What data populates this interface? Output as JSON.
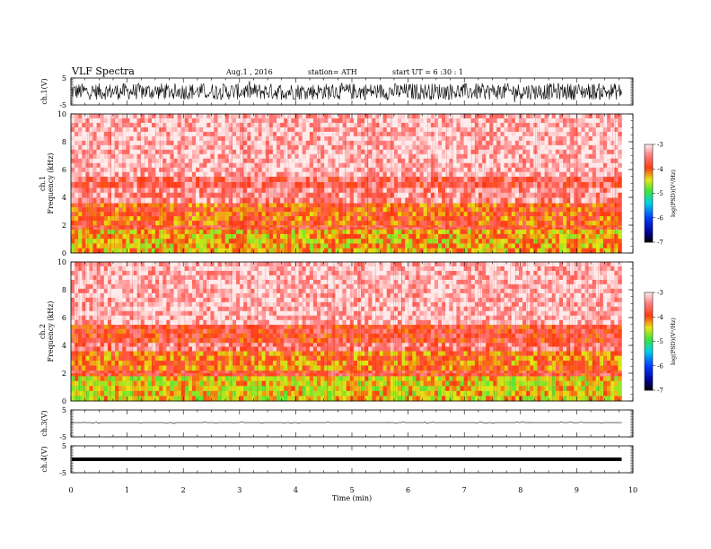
{
  "header": {
    "title": "VLF  Spectra",
    "date": "Aug.1  , 2016",
    "station": "station= ATH",
    "start": "start  UT  =   6  :30 : 1"
  },
  "colors": {
    "background": "#ffffff",
    "axis": "#000000",
    "spectrogram_low_red": "#ff4040",
    "spectrogram_yellow": "#e8e820",
    "spectrogram_green": "#40e040"
  },
  "chart_data": [
    {
      "type": "line",
      "name": "ch1-waveform",
      "ylabel": "ch.1(V)",
      "ylim": [
        -5,
        5
      ],
      "yticks": [
        "5",
        "-5"
      ],
      "xlim": [
        0,
        10
      ],
      "note_values": "dense noise, amplitude roughly -3 to +3 V throughout 0–9.8 min"
    },
    {
      "type": "heatmap",
      "name": "ch1-spectrogram",
      "ylabel": "ch.1\nFrequency  (kHz)",
      "ylim": [
        0,
        10
      ],
      "yticks": [
        "0",
        "2",
        "4",
        "6",
        "8",
        "10"
      ],
      "xlim": [
        0,
        10
      ],
      "data_end_min": 9.8,
      "bands_khz": [
        {
          "from": 0,
          "to": 1.7,
          "logpsd": -4.3
        },
        {
          "from": 1.7,
          "to": 2.0,
          "logpsd": -3.8
        },
        {
          "from": 2.0,
          "to": 3.6,
          "logpsd": -4.0
        },
        {
          "from": 3.6,
          "to": 4.7,
          "logpsd": -3.4
        },
        {
          "from": 4.7,
          "to": 5.5,
          "logpsd": -3.6
        },
        {
          "from": 5.5,
          "to": 10,
          "logpsd": -3.2
        }
      ],
      "colorbar": {
        "label": "log(PSD)(V²/Hz)",
        "range": [
          -7,
          -3
        ],
        "ticks": [
          "-3",
          "-4",
          "-5",
          "-6",
          "-7"
        ]
      }
    },
    {
      "type": "heatmap",
      "name": "ch2-spectrogram",
      "ylabel": "ch.2\nFrequency  (kHz)",
      "ylim": [
        0,
        10
      ],
      "yticks": [
        "0",
        "2",
        "4",
        "6",
        "8",
        "10"
      ],
      "xlim": [
        0,
        10
      ],
      "data_end_min": 9.8,
      "bands_khz": [
        {
          "from": 0,
          "to": 1.8,
          "logpsd": -4.4
        },
        {
          "from": 1.8,
          "to": 2.2,
          "logpsd": -3.8
        },
        {
          "from": 2.2,
          "to": 3.6,
          "logpsd": -4.1
        },
        {
          "from": 3.6,
          "to": 4.2,
          "logpsd": -3.5
        },
        {
          "from": 4.2,
          "to": 5.5,
          "logpsd": -3.8
        },
        {
          "from": 5.5,
          "to": 10,
          "logpsd": -3.2
        }
      ],
      "colorbar": {
        "label": "log(PSD)(V²/Hz)",
        "range": [
          -7,
          -3
        ],
        "ticks": [
          "-3",
          "-4",
          "-5",
          "-6",
          "-7"
        ]
      }
    },
    {
      "type": "line",
      "name": "ch3-waveform",
      "ylabel": "ch.3(V)",
      "ylim": [
        -5,
        5
      ],
      "yticks": [
        "5",
        "-5"
      ],
      "xlim": [
        0,
        10
      ],
      "baseline_v": 0.3
    },
    {
      "type": "line",
      "name": "ch4-waveform",
      "ylabel": "ch.4(V)",
      "ylim": [
        -5,
        5
      ],
      "yticks": [
        "5",
        "-5"
      ],
      "xlim": [
        0,
        10
      ],
      "baseline_v": 0
    }
  ],
  "xaxis": {
    "label": "Time  (min)",
    "ticks": [
      "0",
      "1",
      "2",
      "3",
      "4",
      "5",
      "6",
      "7",
      "8",
      "9",
      "10"
    ]
  }
}
